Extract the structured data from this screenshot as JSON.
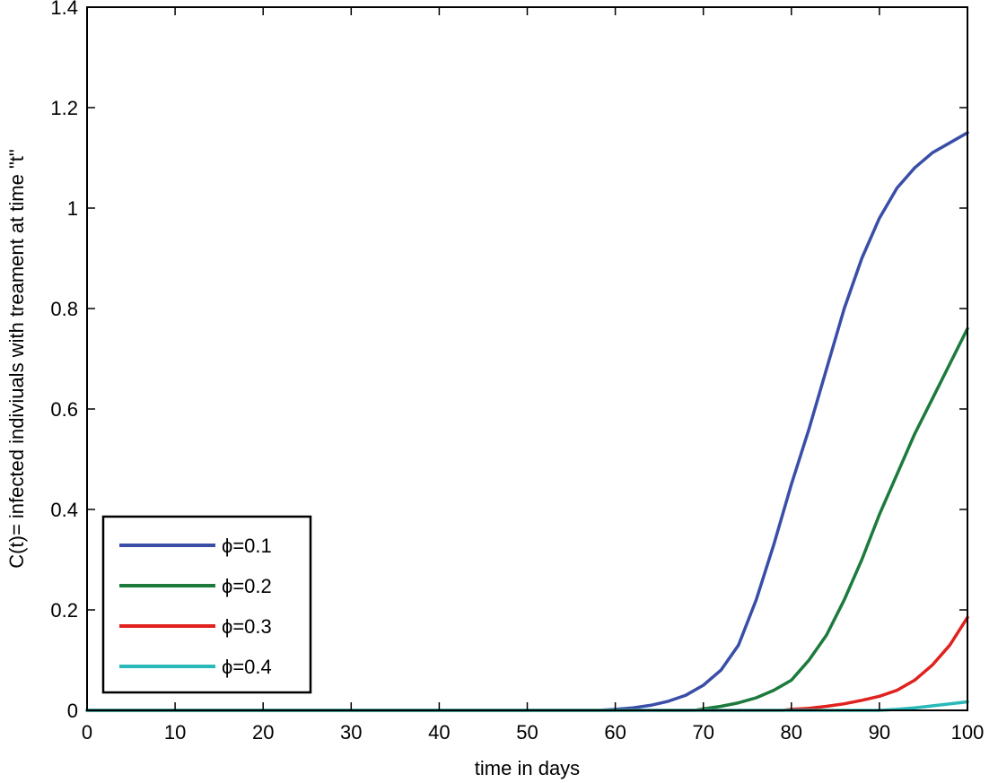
{
  "chart_data": {
    "type": "line",
    "title": "",
    "xlabel": "time in days",
    "ylabel": "C(t)= infected indiviuals with treament at time \"t\"",
    "xlim": [
      0,
      100
    ],
    "ylim": [
      0,
      1.4
    ],
    "xticks": [
      0,
      10,
      20,
      30,
      40,
      50,
      60,
      70,
      80,
      90,
      100
    ],
    "yticks": [
      0,
      0.2,
      0.4,
      0.6,
      0.8,
      1,
      1.2,
      1.4
    ],
    "xtick_labels": [
      "0",
      "10",
      "20",
      "30",
      "40",
      "50",
      "60",
      "70",
      "80",
      "90",
      "100"
    ],
    "ytick_labels": [
      "0",
      "0.2",
      "0.4",
      "0.6",
      "0.8",
      "1",
      "1.2",
      "1.4"
    ],
    "grid": false,
    "legend_position": "bottom-left",
    "series": [
      {
        "name": "ϕ=0.1",
        "color": "#3a4ea8",
        "x": [
          0,
          58,
          60,
          62,
          64,
          66,
          68,
          70,
          72,
          74,
          76,
          78,
          80,
          82,
          84,
          86,
          88,
          90,
          92,
          94,
          96,
          98,
          100
        ],
        "y": [
          0,
          0,
          0.002,
          0.005,
          0.01,
          0.018,
          0.03,
          0.05,
          0.08,
          0.13,
          0.22,
          0.33,
          0.45,
          0.56,
          0.68,
          0.8,
          0.9,
          0.98,
          1.04,
          1.08,
          1.11,
          1.13,
          1.15
        ]
      },
      {
        "name": "ϕ=0.2",
        "color": "#1c7a3c",
        "x": [
          0,
          69,
          70,
          72,
          74,
          76,
          78,
          80,
          82,
          84,
          86,
          88,
          90,
          92,
          94,
          96,
          98,
          100
        ],
        "y": [
          0,
          0,
          0.003,
          0.008,
          0.015,
          0.025,
          0.04,
          0.06,
          0.1,
          0.15,
          0.22,
          0.3,
          0.39,
          0.47,
          0.55,
          0.62,
          0.69,
          0.76
        ]
      },
      {
        "name": "ϕ=0.3",
        "color": "#e0221f",
        "x": [
          0,
          79,
          80,
          82,
          84,
          86,
          88,
          90,
          92,
          94,
          96,
          98,
          100
        ],
        "y": [
          0,
          0,
          0.002,
          0.004,
          0.008,
          0.013,
          0.02,
          0.028,
          0.04,
          0.06,
          0.09,
          0.13,
          0.185
        ]
      },
      {
        "name": "ϕ=0.4",
        "color": "#2ab8b8",
        "x": [
          0,
          90,
          92,
          94,
          96,
          98,
          100
        ],
        "y": [
          0,
          0,
          0.002,
          0.005,
          0.009,
          0.013,
          0.017
        ]
      }
    ]
  }
}
